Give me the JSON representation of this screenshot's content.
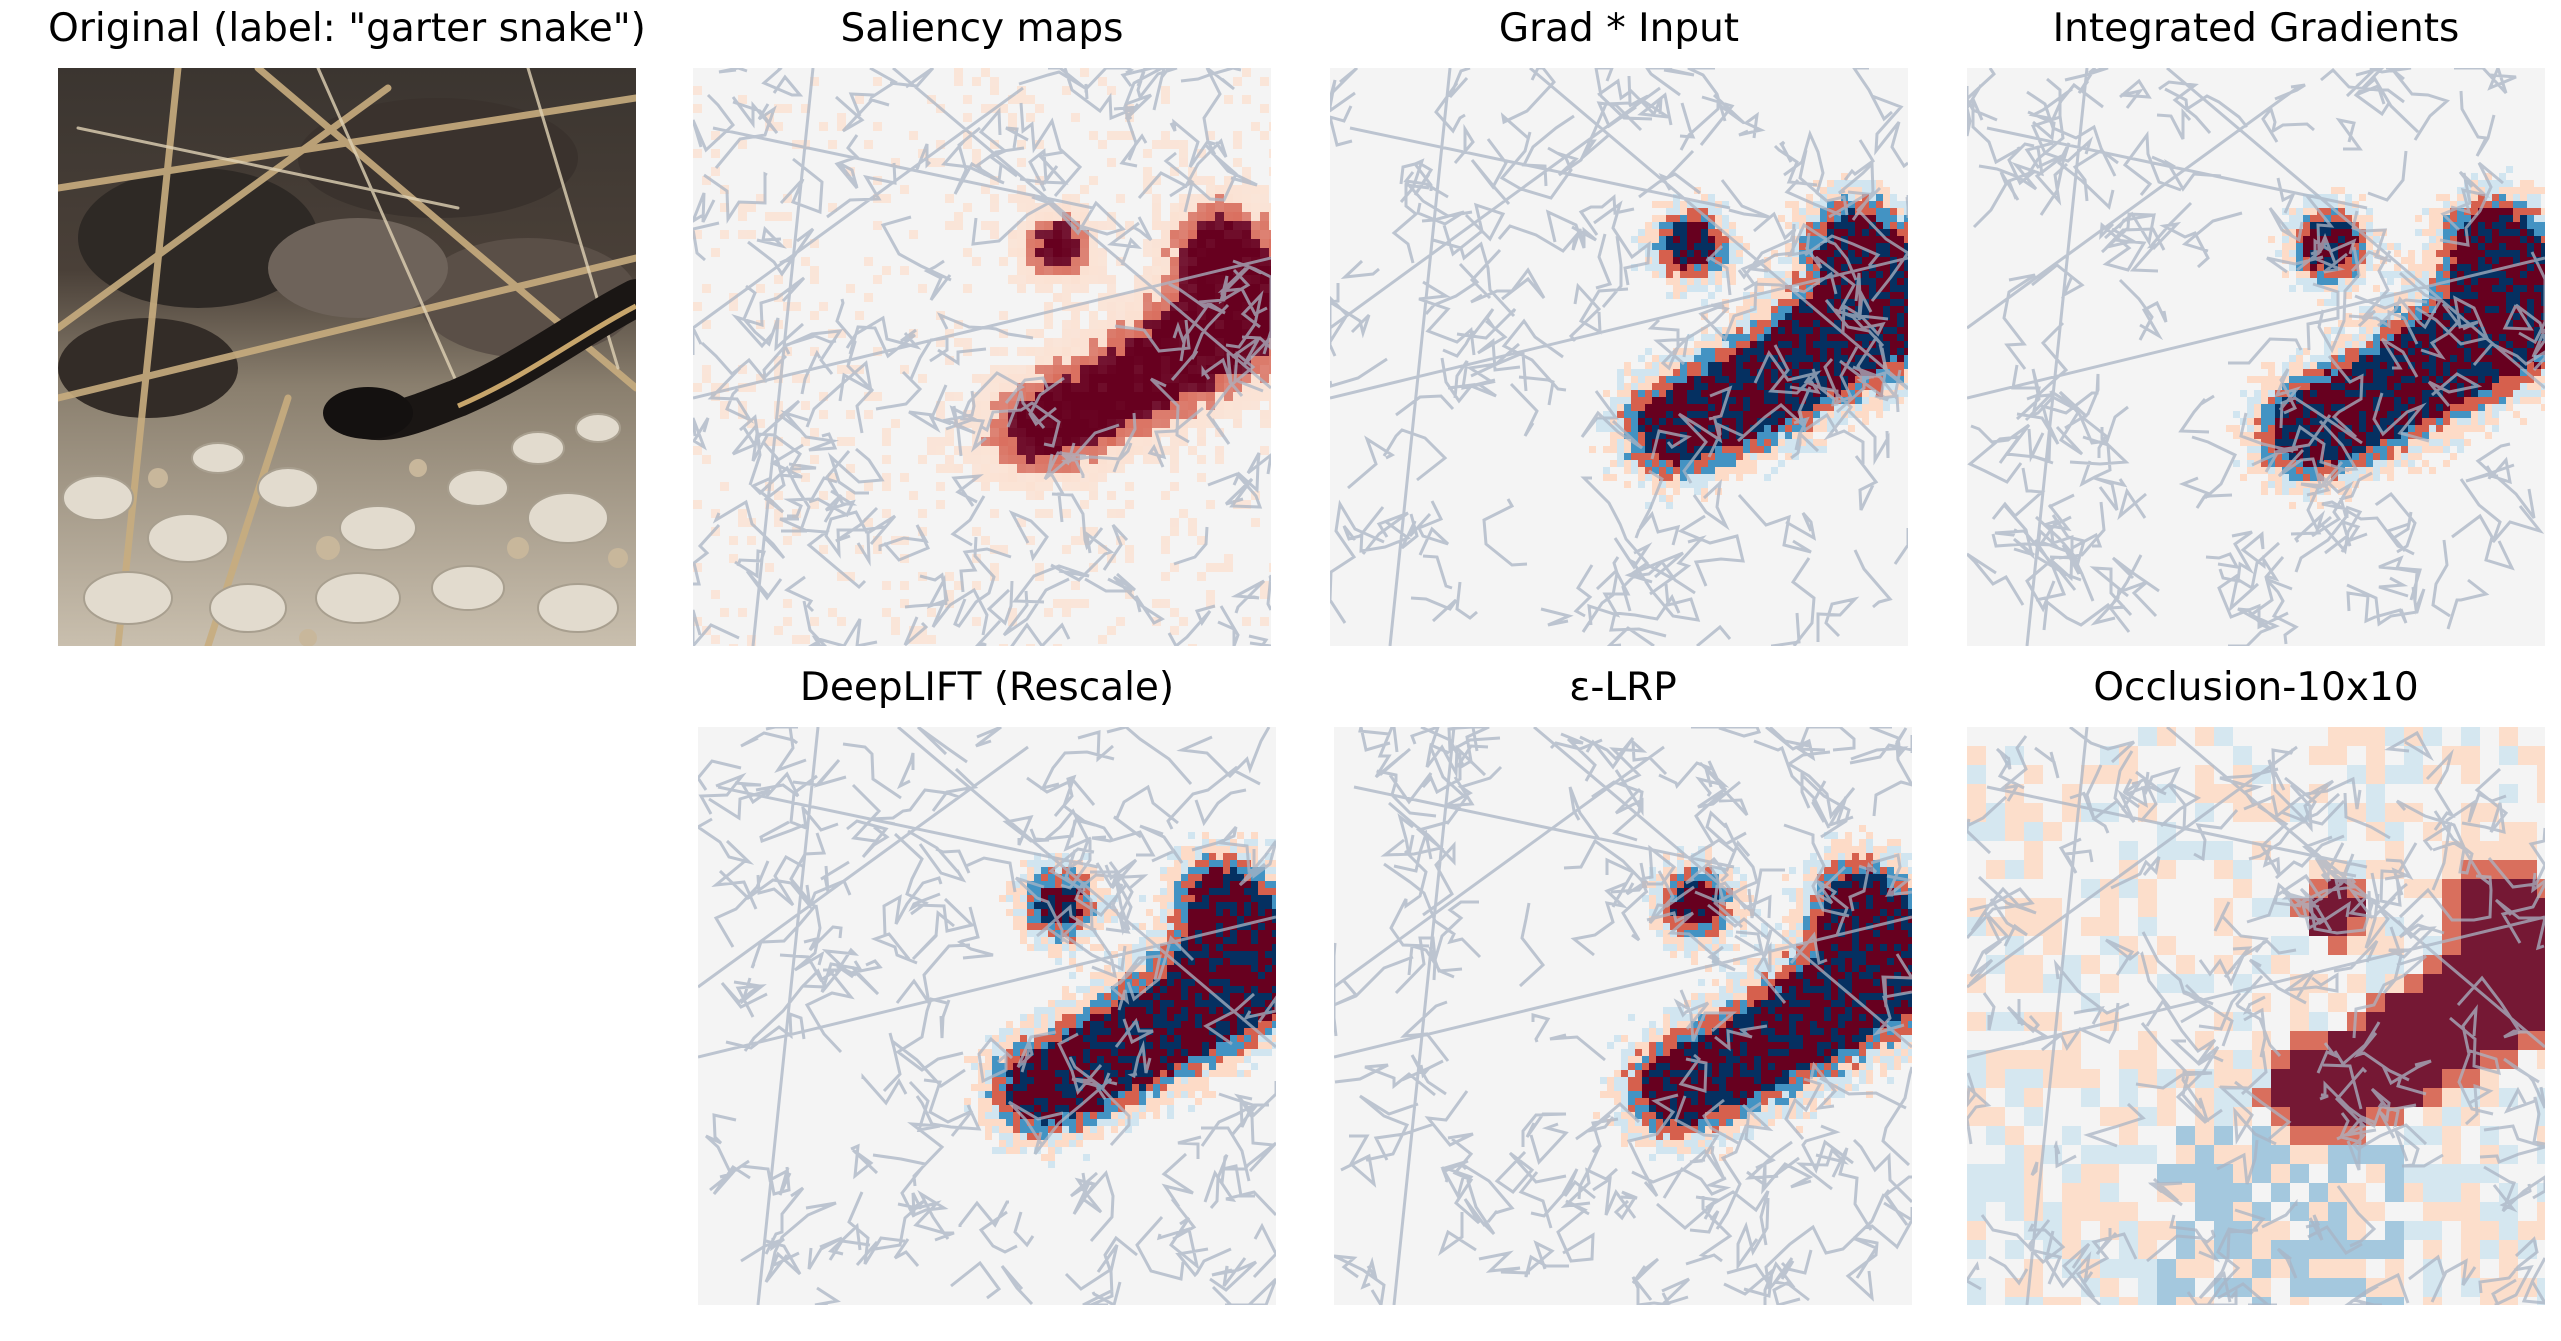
{
  "figure": {
    "panels": [
      {
        "id": "original",
        "title": "Original (label: \"garter snake\")",
        "kind": "photo"
      },
      {
        "id": "saliency",
        "title": "Saliency maps",
        "kind": "saliency"
      },
      {
        "id": "grad_input",
        "title": "Grad * Input",
        "kind": "diverging"
      },
      {
        "id": "integrated_gradients",
        "title": "Integrated Gradients",
        "kind": "diverging"
      },
      {
        "id": "deeplift",
        "title": "DeepLIFT (Rescale)",
        "kind": "diverging"
      },
      {
        "id": "eps_lrp",
        "title": "ε-LRP",
        "kind": "diverging"
      },
      {
        "id": "occlusion",
        "title": "Occlusion-10x10",
        "kind": "occlusion"
      }
    ]
  },
  "colors": {
    "positive_strong": "#67001f",
    "positive_mid": "#d6604d",
    "positive_light": "#fddbc7",
    "neutral": "#f4f4f4",
    "negative_light": "#d1e5f0",
    "negative_mid": "#4393c3",
    "negative_strong": "#053061",
    "edge_lines": "#a9b4c4"
  }
}
